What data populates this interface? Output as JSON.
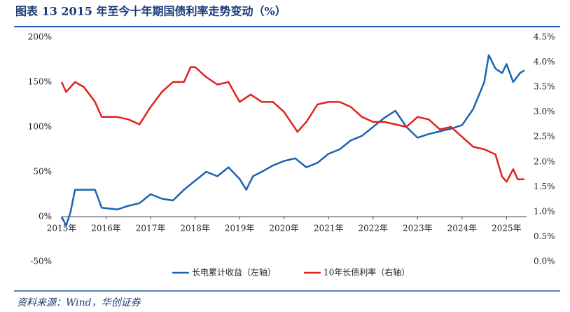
{
  "chart_data": {
    "type": "line",
    "title": "图表 13   2015 年至今十年期国债利率走势变动（%）",
    "source": "资料来源：Wind，华创证券",
    "xlim": [
      2015,
      2025.45
    ],
    "xticks": [
      {
        "value": 2015,
        "label": "2015年"
      },
      {
        "value": 2016,
        "label": "2016年"
      },
      {
        "value": 2017,
        "label": "2017年"
      },
      {
        "value": 2018,
        "label": "2018年"
      },
      {
        "value": 2019,
        "label": "2019年"
      },
      {
        "value": 2020,
        "label": "2020年"
      },
      {
        "value": 2021,
        "label": "2021年"
      },
      {
        "value": 2022,
        "label": "2022年"
      },
      {
        "value": 2023,
        "label": "2023年"
      },
      {
        "value": 2024,
        "label": "2024年"
      },
      {
        "value": 2025,
        "label": "2025年"
      }
    ],
    "ylim": [
      -50,
      200
    ],
    "yticks": [
      {
        "value": -50,
        "label": "-50%"
      },
      {
        "value": 0,
        "label": "0%"
      },
      {
        "value": 50,
        "label": "50%"
      },
      {
        "value": 100,
        "label": "100%"
      },
      {
        "value": 150,
        "label": "150%"
      },
      {
        "value": 200,
        "label": "200%"
      }
    ],
    "y2lim": [
      0,
      4.5
    ],
    "y2ticks": [
      {
        "value": 0,
        "label": "0.0%"
      },
      {
        "value": 0.5,
        "label": "0.5%"
      },
      {
        "value": 1,
        "label": "1.0%"
      },
      {
        "value": 1.5,
        "label": "1.5%"
      },
      {
        "value": 2,
        "label": "2.0%"
      },
      {
        "value": 2.5,
        "label": "2.5%"
      },
      {
        "value": 3,
        "label": "3.0%"
      },
      {
        "value": 3.5,
        "label": "3.5%"
      },
      {
        "value": 4,
        "label": "4.0%"
      },
      {
        "value": 4.5,
        "label": "4.5%"
      }
    ],
    "legend": "bottom",
    "series": [
      {
        "name": "长电累计收益（左轴）",
        "color": "#1b63b3",
        "axis": "y",
        "x": [
          2015.0,
          2015.1,
          2015.2,
          2015.3,
          2015.5,
          2015.75,
          2015.9,
          2016.25,
          2016.5,
          2016.75,
          2017.0,
          2017.25,
          2017.5,
          2017.75,
          2018.0,
          2018.25,
          2018.5,
          2018.75,
          2019.0,
          2019.15,
          2019.3,
          2019.5,
          2019.75,
          2020.0,
          2020.25,
          2020.5,
          2020.75,
          2021.0,
          2021.25,
          2021.5,
          2021.75,
          2022.0,
          2022.25,
          2022.5,
          2022.75,
          2023.0,
          2023.25,
          2023.5,
          2023.75,
          2024.0,
          2024.25,
          2024.5,
          2024.6,
          2024.75,
          2024.9,
          2025.0,
          2025.15,
          2025.3,
          2025.4
        ],
        "values": [
          0,
          -10,
          5,
          30,
          30,
          30,
          10,
          8,
          12,
          15,
          25,
          20,
          18,
          30,
          40,
          50,
          45,
          55,
          42,
          30,
          45,
          50,
          57,
          62,
          65,
          55,
          60,
          70,
          75,
          85,
          90,
          100,
          110,
          118,
          100,
          88,
          92,
          95,
          98,
          102,
          120,
          150,
          180,
          165,
          160,
          170,
          150,
          160,
          163
        ]
      },
      {
        "name": "10年长债利率（右轴）",
        "color": "#e3211c",
        "axis": "y2",
        "x": [
          2015.0,
          2015.1,
          2015.3,
          2015.5,
          2015.75,
          2015.9,
          2016.25,
          2016.5,
          2016.75,
          2017.0,
          2017.25,
          2017.5,
          2017.75,
          2017.9,
          2018.0,
          2018.25,
          2018.5,
          2018.75,
          2019.0,
          2019.25,
          2019.5,
          2019.75,
          2020.0,
          2020.3,
          2020.5,
          2020.75,
          2021.0,
          2021.25,
          2021.5,
          2021.75,
          2022.0,
          2022.25,
          2022.5,
          2022.75,
          2023.0,
          2023.25,
          2023.5,
          2023.75,
          2024.0,
          2024.25,
          2024.5,
          2024.75,
          2024.9,
          2025.0,
          2025.15,
          2025.25,
          2025.4
        ],
        "values": [
          3.6,
          3.4,
          3.6,
          3.5,
          3.2,
          2.9,
          2.9,
          2.85,
          2.75,
          3.1,
          3.4,
          3.6,
          3.6,
          3.9,
          3.9,
          3.7,
          3.55,
          3.6,
          3.2,
          3.35,
          3.2,
          3.2,
          3.0,
          2.6,
          2.8,
          3.15,
          3.2,
          3.2,
          3.1,
          2.9,
          2.8,
          2.8,
          2.75,
          2.7,
          2.9,
          2.85,
          2.65,
          2.7,
          2.5,
          2.3,
          2.25,
          2.15,
          1.7,
          1.6,
          1.85,
          1.65,
          1.65
        ]
      }
    ]
  }
}
